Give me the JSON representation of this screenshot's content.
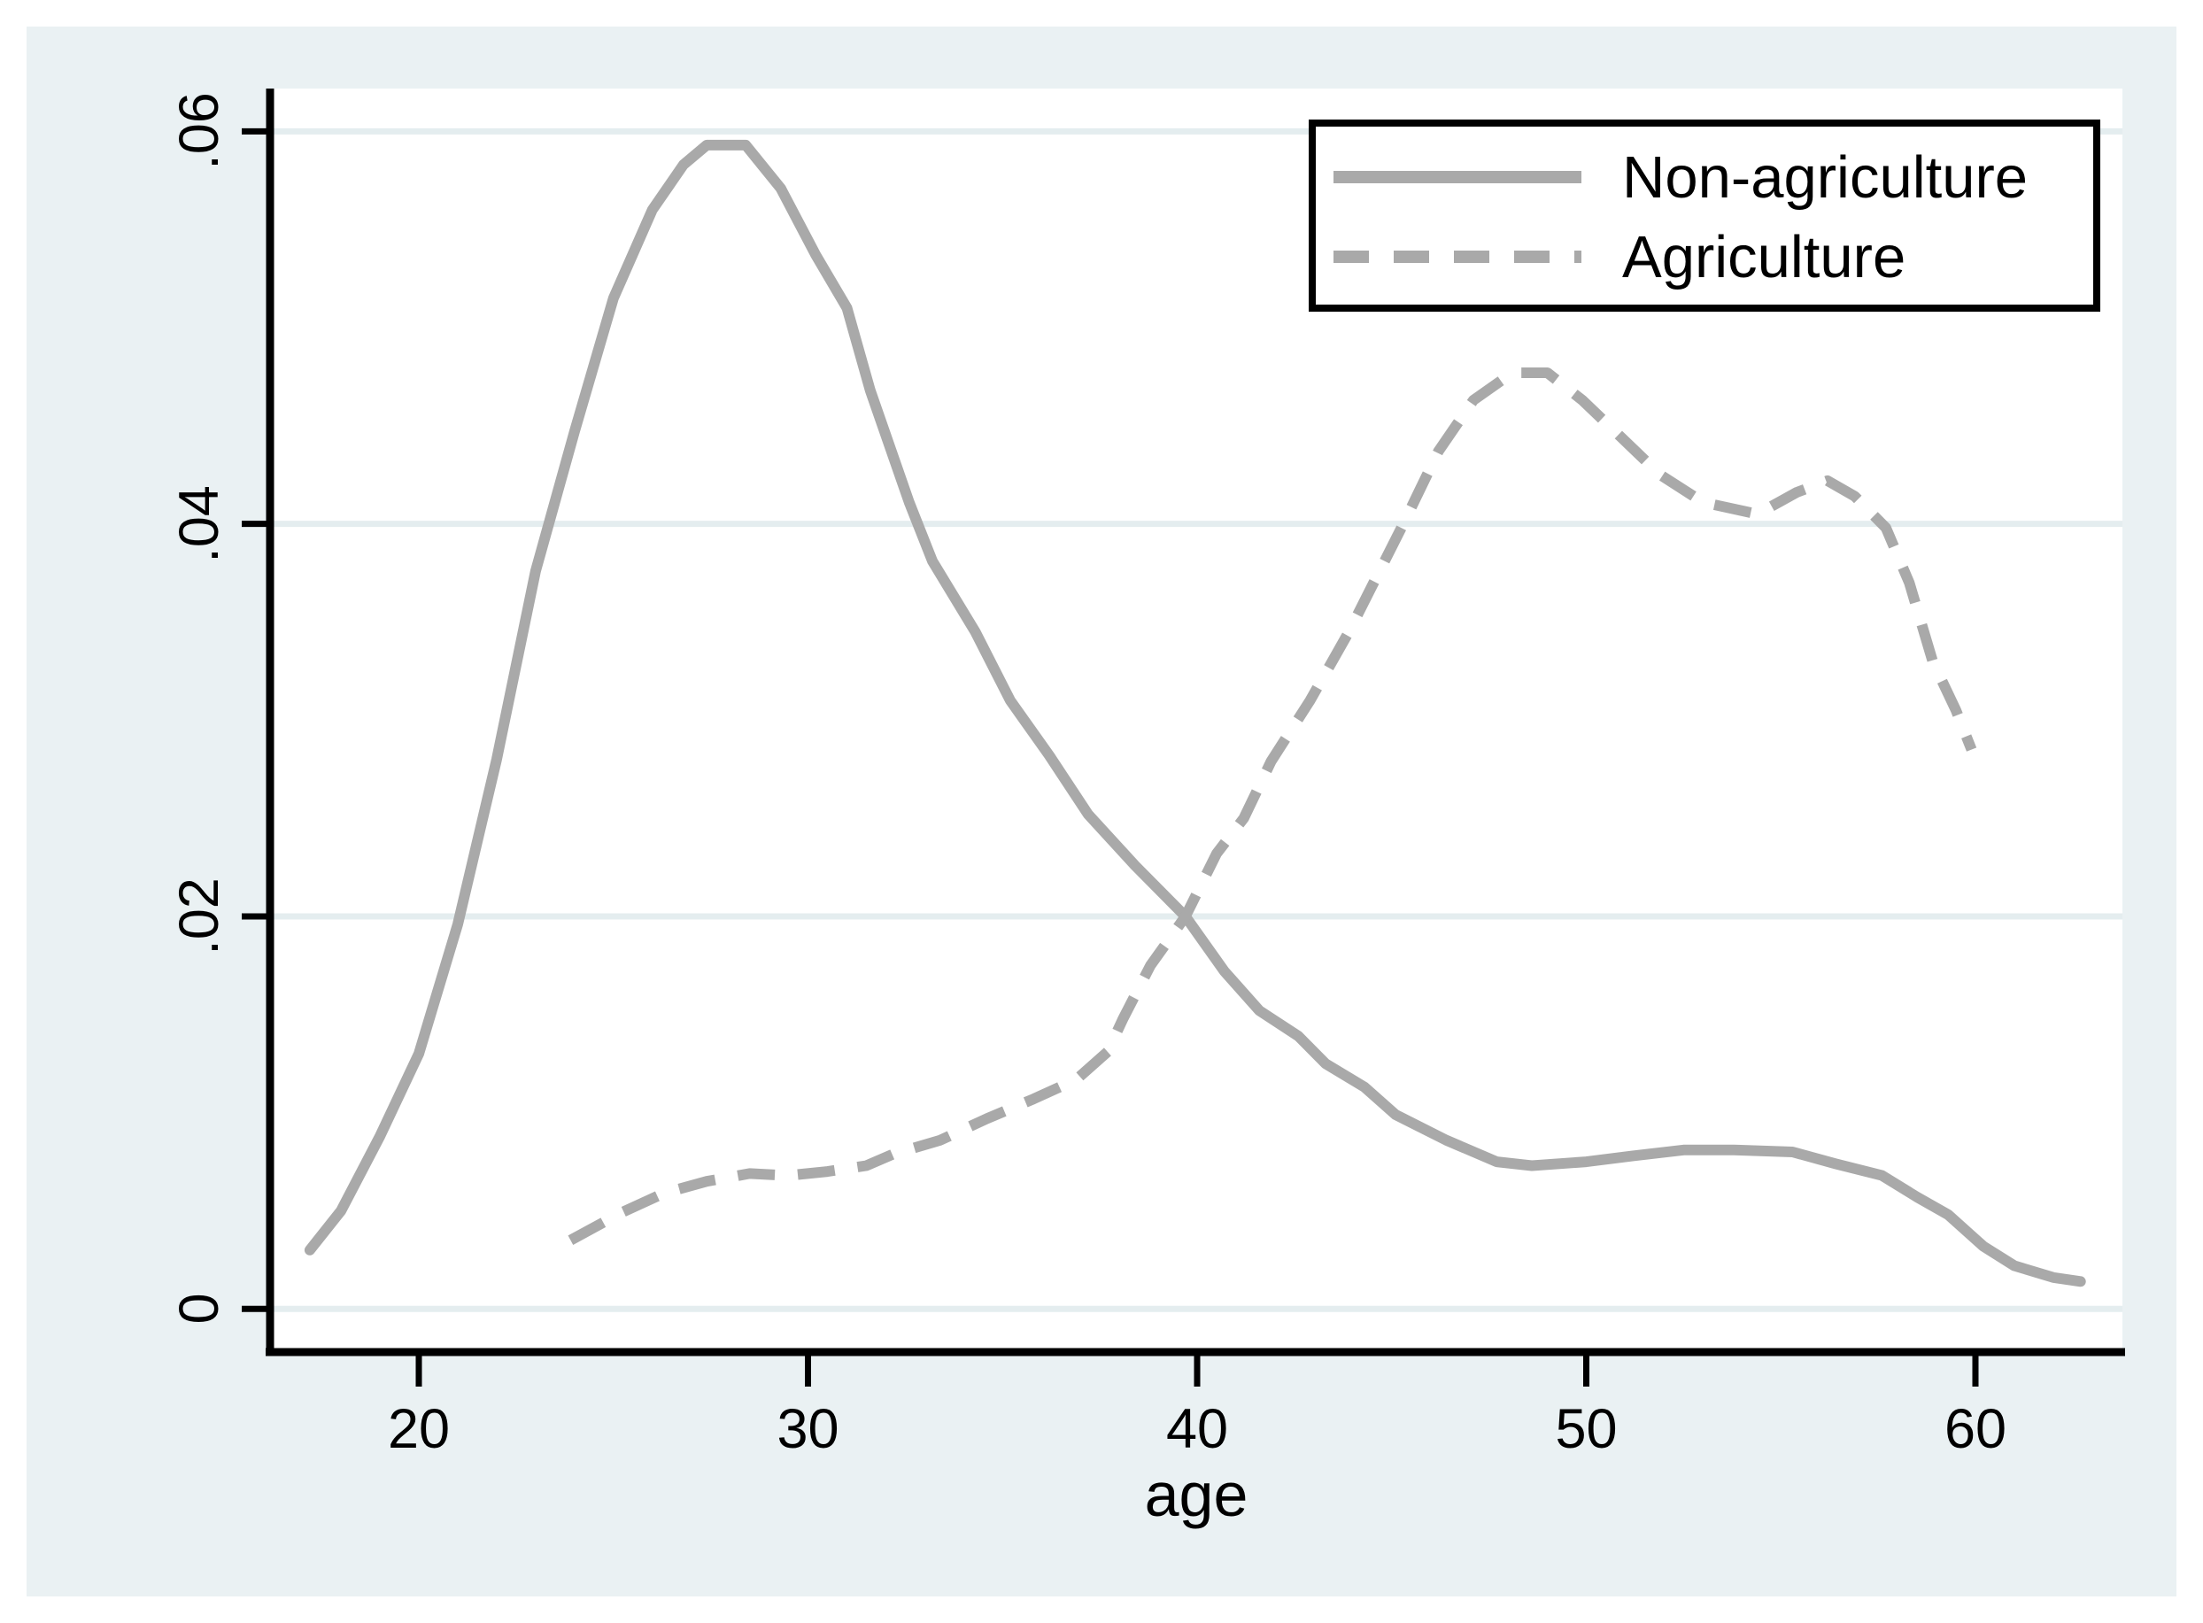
{
  "figure": {
    "background_color": "#ffffff",
    "canvas_color": "#eaf1f3",
    "plot_background": "#ffffff",
    "grid_color": "#e4edef",
    "axis_color": "#000000",
    "curve_color": "#a9a9a9"
  },
  "legend": {
    "items": [
      {
        "label": "Non-agriculture",
        "style": "solid"
      },
      {
        "label": "Agriculture",
        "style": "dashed"
      }
    ]
  },
  "chart_data": {
    "type": "line",
    "title": "",
    "xlabel": "age",
    "ylabel": "",
    "xlim": [
      16.2,
      63.8
    ],
    "ylim": [
      -0.0024,
      0.0622
    ],
    "x_ticks": [
      20,
      30,
      40,
      50,
      60
    ],
    "x_tick_labels": [
      "20",
      "30",
      "40",
      "50",
      "60"
    ],
    "y_ticks": [
      0,
      0.02,
      0.04,
      0.06
    ],
    "y_tick_labels": [
      "0",
      ".02",
      ".04",
      ".06"
    ],
    "grid": "horizontal",
    "legend_position": "top-right",
    "series": [
      {
        "name": "Non-agriculture",
        "style": "solid",
        "points": [
          [
            17.2,
            0.003
          ],
          [
            18,
            0.005
          ],
          [
            19,
            0.0088
          ],
          [
            20,
            0.013
          ],
          [
            21,
            0.0196
          ],
          [
            22,
            0.028
          ],
          [
            23,
            0.0376
          ],
          [
            24,
            0.0447
          ],
          [
            25,
            0.0515
          ],
          [
            26,
            0.056
          ],
          [
            26.8,
            0.0583
          ],
          [
            27.4,
            0.0593
          ],
          [
            28.4,
            0.0593
          ],
          [
            29.3,
            0.0571
          ],
          [
            30.2,
            0.0537
          ],
          [
            31,
            0.051
          ],
          [
            31.6,
            0.0468
          ],
          [
            32.6,
            0.0411
          ],
          [
            33.2,
            0.0381
          ],
          [
            34.3,
            0.0345
          ],
          [
            35.2,
            0.031
          ],
          [
            36.2,
            0.0282
          ],
          [
            37.2,
            0.0252
          ],
          [
            38.4,
            0.0226
          ],
          [
            39.7,
            0.02
          ],
          [
            40.7,
            0.0172
          ],
          [
            41.6,
            0.0152
          ],
          [
            42.6,
            0.0139
          ],
          [
            43.3,
            0.0125
          ],
          [
            44.3,
            0.0113
          ],
          [
            45.1,
            0.0099
          ],
          [
            46.4,
            0.0086
          ],
          [
            47.7,
            0.0075
          ],
          [
            48.6,
            0.0073
          ],
          [
            50,
            0.0075
          ],
          [
            51.2,
            0.0078
          ],
          [
            52.5,
            0.0081
          ],
          [
            53.8,
            0.0081
          ],
          [
            55.3,
            0.008
          ],
          [
            56.4,
            0.0074
          ],
          [
            57.6,
            0.0068
          ],
          [
            58.5,
            0.0057
          ],
          [
            59.3,
            0.0048
          ],
          [
            60.2,
            0.0032
          ],
          [
            61,
            0.0022
          ],
          [
            62,
            0.0016
          ],
          [
            62.7,
            0.0014
          ]
        ]
      },
      {
        "name": "Agriculture",
        "style": "dashed",
        "points": [
          [
            23.9,
            0.0035
          ],
          [
            25.2,
            0.0049
          ],
          [
            26.3,
            0.0059
          ],
          [
            27.4,
            0.0065
          ],
          [
            28.5,
            0.0069
          ],
          [
            29.5,
            0.0068
          ],
          [
            30.5,
            0.007
          ],
          [
            31.5,
            0.0073
          ],
          [
            32.2,
            0.0079
          ],
          [
            33.4,
            0.0086
          ],
          [
            34.6,
            0.0097
          ],
          [
            35.8,
            0.0107
          ],
          [
            36.9,
            0.0117
          ],
          [
            37.7,
            0.0131
          ],
          [
            38.1,
            0.0148
          ],
          [
            38.8,
            0.0175
          ],
          [
            39.7,
            0.02
          ],
          [
            40.5,
            0.0232
          ],
          [
            41.2,
            0.025
          ],
          [
            41.9,
            0.0279
          ],
          [
            42.9,
            0.031
          ],
          [
            43.9,
            0.0345
          ],
          [
            45.3,
            0.04
          ],
          [
            46.2,
            0.0437
          ],
          [
            47.1,
            0.0463
          ],
          [
            48.1,
            0.0477
          ],
          [
            49,
            0.0477
          ],
          [
            49.9,
            0.0463
          ],
          [
            50.9,
            0.0444
          ],
          [
            51.9,
            0.0425
          ],
          [
            53,
            0.0411
          ],
          [
            54.4,
            0.0405
          ],
          [
            55.4,
            0.0416
          ],
          [
            56.2,
            0.0422
          ],
          [
            56.9,
            0.0414
          ],
          [
            57.7,
            0.0398
          ],
          [
            58.3,
            0.037
          ],
          [
            58.9,
            0.033
          ],
          [
            59.5,
            0.0305
          ],
          [
            59.9,
            0.0285
          ]
        ]
      }
    ]
  }
}
